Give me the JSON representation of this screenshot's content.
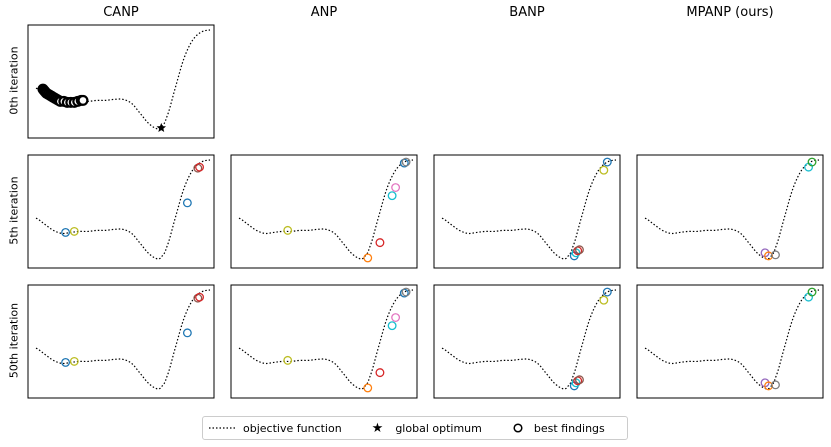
{
  "columns": [
    "CANP",
    "ANP",
    "BANP",
    "MPANP (ours)"
  ],
  "rows": [
    "0th iteration",
    "5th iteration",
    "50th iteration"
  ],
  "legend": {
    "objective": "objective function",
    "optimum": "global optimum",
    "findings": "best findings"
  },
  "colors": {
    "objective": "#000000",
    "optimum": "#000000",
    "findings_palette": [
      "#1f77b4",
      "#ff7f0e",
      "#2ca02c",
      "#d62728",
      "#9467bd",
      "#8c564b",
      "#e377c2",
      "#7f7f7f",
      "#bcbd22",
      "#17becf"
    ]
  },
  "chart_data": {
    "type": "scatter",
    "title": "",
    "xlabel": "",
    "ylabel": "",
    "x_range": [
      0,
      1
    ],
    "y_range": [
      0,
      1
    ],
    "objective_function": {
      "x": [
        0.0,
        0.05,
        0.1,
        0.15,
        0.2,
        0.25,
        0.3,
        0.35,
        0.4,
        0.45,
        0.5,
        0.55,
        0.6,
        0.65,
        0.7,
        0.72,
        0.75,
        0.8,
        0.85,
        0.9,
        0.95,
        1.0
      ],
      "y": [
        0.43,
        0.37,
        0.31,
        0.28,
        0.29,
        0.3,
        0.3,
        0.31,
        0.31,
        0.32,
        0.32,
        0.28,
        0.18,
        0.08,
        0.03,
        0.05,
        0.14,
        0.43,
        0.72,
        0.9,
        0.98,
        1.0
      ]
    },
    "global_optimum": {
      "x": 0.72,
      "y": 0.04
    },
    "panels": [
      {
        "row": 0,
        "col": 0,
        "findings": [
          {
            "x": 0.04,
            "y": 0.42,
            "c": 0
          },
          {
            "x": 0.045,
            "y": 0.41,
            "c": 1
          },
          {
            "x": 0.05,
            "y": 0.4,
            "c": 2
          },
          {
            "x": 0.055,
            "y": 0.39,
            "c": 3
          },
          {
            "x": 0.06,
            "y": 0.38,
            "c": 4
          },
          {
            "x": 0.07,
            "y": 0.37,
            "c": 5
          },
          {
            "x": 0.08,
            "y": 0.36,
            "c": 6
          },
          {
            "x": 0.09,
            "y": 0.35,
            "c": 7
          },
          {
            "x": 0.1,
            "y": 0.34,
            "c": 8
          },
          {
            "x": 0.11,
            "y": 0.33,
            "c": 9
          },
          {
            "x": 0.12,
            "y": 0.32,
            "c": 0
          },
          {
            "x": 0.13,
            "y": 0.31,
            "c": 1
          },
          {
            "x": 0.14,
            "y": 0.3,
            "c": 2
          },
          {
            "x": 0.16,
            "y": 0.3,
            "c": 3
          },
          {
            "x": 0.18,
            "y": 0.29,
            "c": 4
          },
          {
            "x": 0.2,
            "y": 0.29,
            "c": 5
          },
          {
            "x": 0.22,
            "y": 0.29,
            "c": 6
          },
          {
            "x": 0.24,
            "y": 0.3,
            "c": 7
          },
          {
            "x": 0.26,
            "y": 0.31,
            "c": 8
          },
          {
            "x": 0.27,
            "y": 0.31,
            "c": 9
          }
        ]
      },
      {
        "row": 1,
        "col": 0,
        "findings": [
          {
            "x": 0.17,
            "y": 0.29,
            "c": 0
          },
          {
            "x": 0.22,
            "y": 0.3,
            "c": 8
          },
          {
            "x": 0.87,
            "y": 0.58,
            "c": 0
          },
          {
            "x": 0.93,
            "y": 0.92,
            "c": 5
          },
          {
            "x": 0.94,
            "y": 0.93,
            "c": 3
          }
        ]
      },
      {
        "row": 1,
        "col": 1,
        "findings": [
          {
            "x": 0.28,
            "y": 0.31,
            "c": 8
          },
          {
            "x": 0.74,
            "y": 0.04,
            "c": 1
          },
          {
            "x": 0.81,
            "y": 0.19,
            "c": 3
          },
          {
            "x": 0.88,
            "y": 0.65,
            "c": 9
          },
          {
            "x": 0.9,
            "y": 0.73,
            "c": 6
          },
          {
            "x": 0.95,
            "y": 0.97,
            "c": 0
          },
          {
            "x": 0.96,
            "y": 0.98,
            "c": 7
          }
        ]
      },
      {
        "row": 1,
        "col": 2,
        "findings": [
          {
            "x": 0.76,
            "y": 0.06,
            "c": 0
          },
          {
            "x": 0.77,
            "y": 0.09,
            "c": 9
          },
          {
            "x": 0.78,
            "y": 0.11,
            "c": 3
          },
          {
            "x": 0.79,
            "y": 0.12,
            "c": 5
          },
          {
            "x": 0.93,
            "y": 0.9,
            "c": 8
          },
          {
            "x": 0.95,
            "y": 0.98,
            "c": 0
          }
        ]
      },
      {
        "row": 1,
        "col": 3,
        "findings": [
          {
            "x": 0.69,
            "y": 0.09,
            "c": 4
          },
          {
            "x": 0.71,
            "y": 0.06,
            "c": 1
          },
          {
            "x": 0.75,
            "y": 0.07,
            "c": 7
          },
          {
            "x": 0.94,
            "y": 0.93,
            "c": 9
          },
          {
            "x": 0.96,
            "y": 0.98,
            "c": 2
          }
        ]
      },
      {
        "row": 2,
        "col": 0,
        "findings": [
          {
            "x": 0.17,
            "y": 0.29,
            "c": 0
          },
          {
            "x": 0.22,
            "y": 0.3,
            "c": 8
          },
          {
            "x": 0.87,
            "y": 0.58,
            "c": 0
          },
          {
            "x": 0.93,
            "y": 0.92,
            "c": 5
          },
          {
            "x": 0.94,
            "y": 0.93,
            "c": 3
          }
        ]
      },
      {
        "row": 2,
        "col": 1,
        "findings": [
          {
            "x": 0.28,
            "y": 0.31,
            "c": 8
          },
          {
            "x": 0.74,
            "y": 0.04,
            "c": 1
          },
          {
            "x": 0.81,
            "y": 0.19,
            "c": 3
          },
          {
            "x": 0.88,
            "y": 0.65,
            "c": 9
          },
          {
            "x": 0.9,
            "y": 0.73,
            "c": 6
          },
          {
            "x": 0.95,
            "y": 0.97,
            "c": 0
          },
          {
            "x": 0.96,
            "y": 0.98,
            "c": 7
          }
        ]
      },
      {
        "row": 2,
        "col": 2,
        "findings": [
          {
            "x": 0.76,
            "y": 0.06,
            "c": 0
          },
          {
            "x": 0.77,
            "y": 0.09,
            "c": 9
          },
          {
            "x": 0.78,
            "y": 0.11,
            "c": 3
          },
          {
            "x": 0.79,
            "y": 0.12,
            "c": 5
          },
          {
            "x": 0.93,
            "y": 0.9,
            "c": 8
          },
          {
            "x": 0.95,
            "y": 0.98,
            "c": 0
          }
        ]
      },
      {
        "row": 2,
        "col": 3,
        "findings": [
          {
            "x": 0.69,
            "y": 0.09,
            "c": 4
          },
          {
            "x": 0.71,
            "y": 0.06,
            "c": 1
          },
          {
            "x": 0.75,
            "y": 0.07,
            "c": 7
          },
          {
            "x": 0.94,
            "y": 0.93,
            "c": 9
          },
          {
            "x": 0.96,
            "y": 0.98,
            "c": 2
          }
        ]
      }
    ]
  }
}
